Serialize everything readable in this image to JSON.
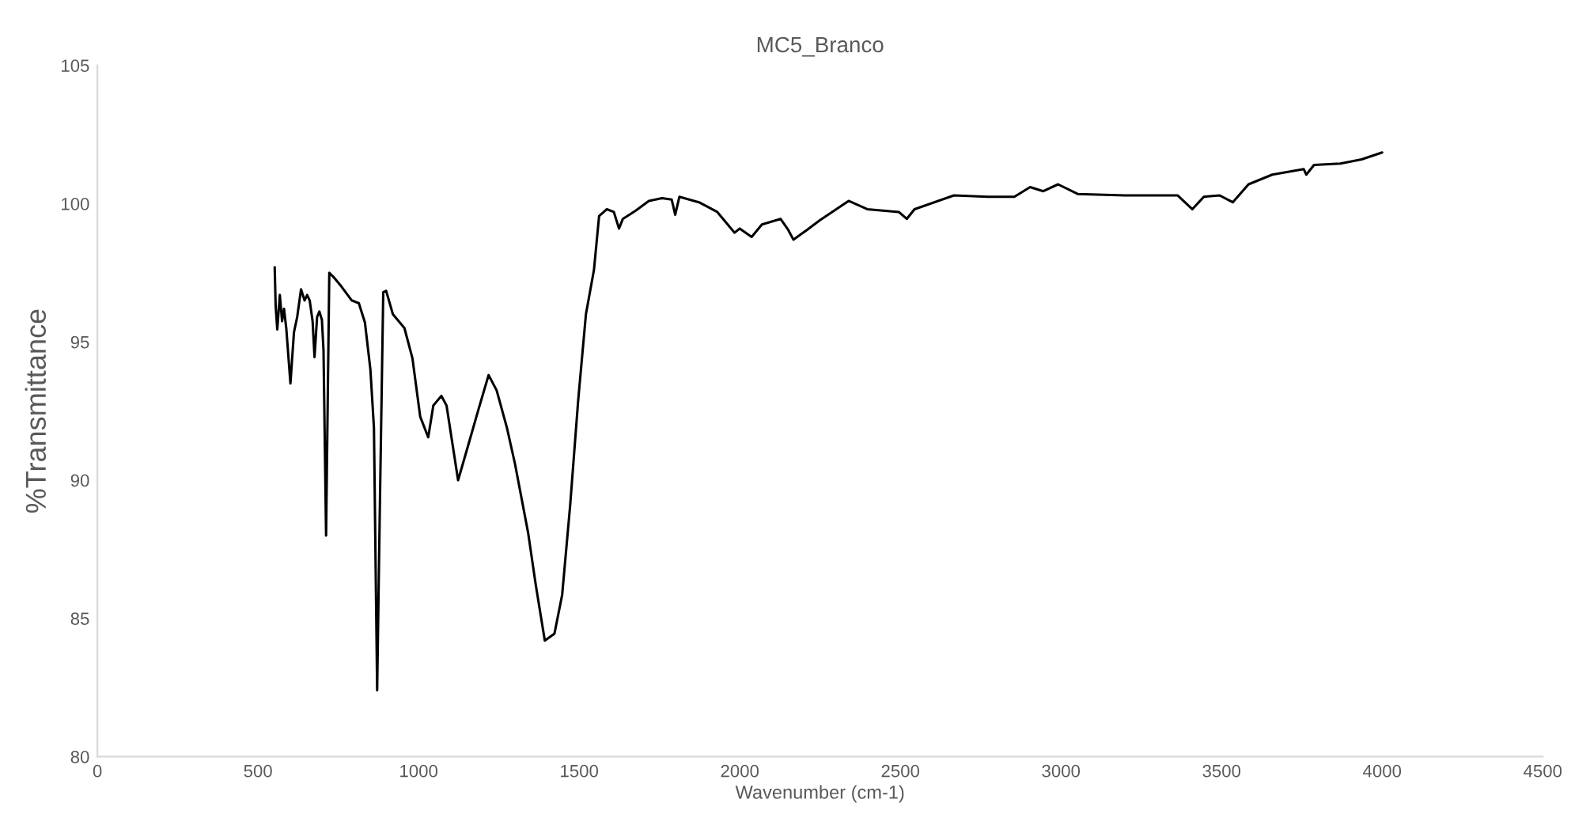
{
  "chart_data": {
    "type": "line",
    "title": "MC5_Branco",
    "xlabel": "Wavenumber (cm-1)",
    "ylabel": "%Transmittance",
    "xlim": [
      0,
      4500
    ],
    "xticks": [
      0,
      500,
      1000,
      1500,
      2000,
      2500,
      3000,
      3500,
      4000,
      4500
    ],
    "ylim": [
      80,
      105
    ],
    "yticks": [
      80,
      85,
      90,
      95,
      100,
      105
    ],
    "grid": false,
    "series": [
      {
        "color": "#000000",
        "x": [
          552,
          555,
          560,
          568,
          575,
          581,
          588,
          601,
          612,
          622,
          634,
          645,
          653,
          661,
          670,
          676,
          684,
          691,
          699,
          704,
          712,
          722,
          735,
          760,
          792,
          814,
          833,
          850,
          861,
          871,
          879,
          890,
          899,
          920,
          956,
          981,
          1005,
          1030,
          1046,
          1071,
          1087,
          1123,
          1153,
          1185,
          1218,
          1243,
          1275,
          1300,
          1341,
          1365,
          1393,
          1423,
          1447,
          1472,
          1497,
          1521,
          1546,
          1562,
          1586,
          1608,
          1624,
          1636,
          1676,
          1717,
          1758,
          1788,
          1799,
          1812,
          1873,
          1930,
          1984,
          2000,
          2037,
          2069,
          2127,
          2151,
          2167,
          2209,
          2249,
          2339,
          2397,
          2495,
          2520,
          2544,
          2667,
          2773,
          2855,
          2904,
          2945,
          2991,
          3052,
          3199,
          3363,
          3409,
          3445,
          3494,
          3535,
          3584,
          3658,
          3756,
          3764,
          3788,
          3870,
          3936,
          4000
        ],
        "values": [
          97.7,
          96.3,
          95.45,
          96.7,
          95.75,
          96.2,
          95.5,
          93.5,
          95.35,
          95.9,
          96.9,
          96.5,
          96.7,
          96.5,
          95.75,
          94.45,
          95.9,
          96.1,
          95.8,
          94.7,
          88.0,
          97.5,
          97.35,
          97.0,
          96.5,
          96.4,
          95.7,
          94.0,
          91.9,
          82.4,
          88.7,
          96.8,
          96.85,
          96.0,
          95.5,
          94.4,
          92.3,
          91.55,
          92.7,
          93.05,
          92.7,
          90.0,
          91.2,
          92.5,
          93.8,
          93.25,
          91.9,
          90.6,
          88.1,
          86.2,
          84.2,
          84.45,
          85.85,
          89.1,
          92.9,
          96.0,
          97.6,
          99.55,
          99.8,
          99.7,
          99.1,
          99.45,
          99.75,
          100.1,
          100.2,
          100.15,
          99.6,
          100.25,
          100.05,
          99.7,
          98.95,
          99.1,
          98.8,
          99.25,
          99.45,
          99.05,
          98.7,
          99.05,
          99.4,
          100.1,
          99.8,
          99.7,
          99.45,
          99.8,
          100.3,
          100.25,
          100.25,
          100.6,
          100.45,
          100.7,
          100.35,
          100.3,
          100.3,
          99.8,
          100.25,
          100.3,
          100.05,
          100.7,
          101.05,
          101.25,
          101.05,
          101.4,
          101.45,
          101.6,
          101.85
        ]
      }
    ]
  }
}
